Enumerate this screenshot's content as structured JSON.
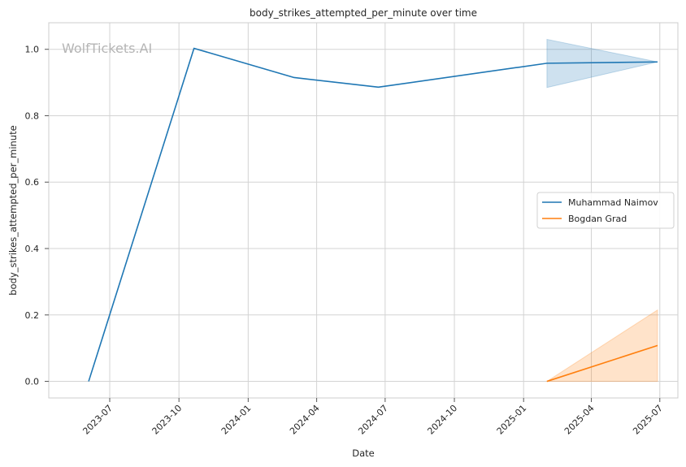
{
  "chart_data": {
    "type": "line",
    "title": "body_strikes_attempted_per_minute over time",
    "xlabel": "Date",
    "ylabel": "body_strikes_attempted_per_minute",
    "watermark": "WolfTickets.AI",
    "x_axis_type": "date",
    "xlim": [
      "2023-04-11",
      "2025-07-25"
    ],
    "ylim": [
      -0.05,
      1.08
    ],
    "x_ticks": [
      "2023-07-01",
      "2023-10-01",
      "2024-01-01",
      "2024-04-01",
      "2024-07-01",
      "2024-10-01",
      "2025-01-01",
      "2025-04-01",
      "2025-07-01"
    ],
    "x_tick_labels": [
      "2023-07",
      "2023-10",
      "2024-01",
      "2024-04",
      "2024-07",
      "2024-10",
      "2025-01",
      "2025-04",
      "2025-07"
    ],
    "y_ticks": [
      0.0,
      0.2,
      0.4,
      0.6,
      0.8,
      1.0
    ],
    "y_tick_labels": [
      "0.0",
      "0.2",
      "0.4",
      "0.6",
      "0.8",
      "1.0"
    ],
    "grid": true,
    "legend_position": "center-right",
    "series": [
      {
        "name": "Muhammad Naimov",
        "color": "#1f77b4",
        "x": [
          "2023-06-03",
          "2023-10-21",
          "2024-03-02",
          "2024-06-22",
          "2025-02-01",
          "2025-06-28"
        ],
        "y": [
          0.0,
          1.003,
          0.915,
          0.886,
          0.958,
          0.962
        ],
        "band": {
          "x": [
            "2025-02-01",
            "2025-06-28"
          ],
          "lower": [
            0.885,
            0.962
          ],
          "upper": [
            1.03,
            0.962
          ]
        }
      },
      {
        "name": "Bogdan Grad",
        "color": "#ff7f0e",
        "x": [
          "2025-02-01",
          "2025-06-28"
        ],
        "y": [
          0.0,
          0.108
        ],
        "band": {
          "x": [
            "2025-02-01",
            "2025-06-28"
          ],
          "lower": [
            0.0,
            0.0
          ],
          "upper": [
            0.0,
            0.215
          ]
        }
      }
    ]
  }
}
